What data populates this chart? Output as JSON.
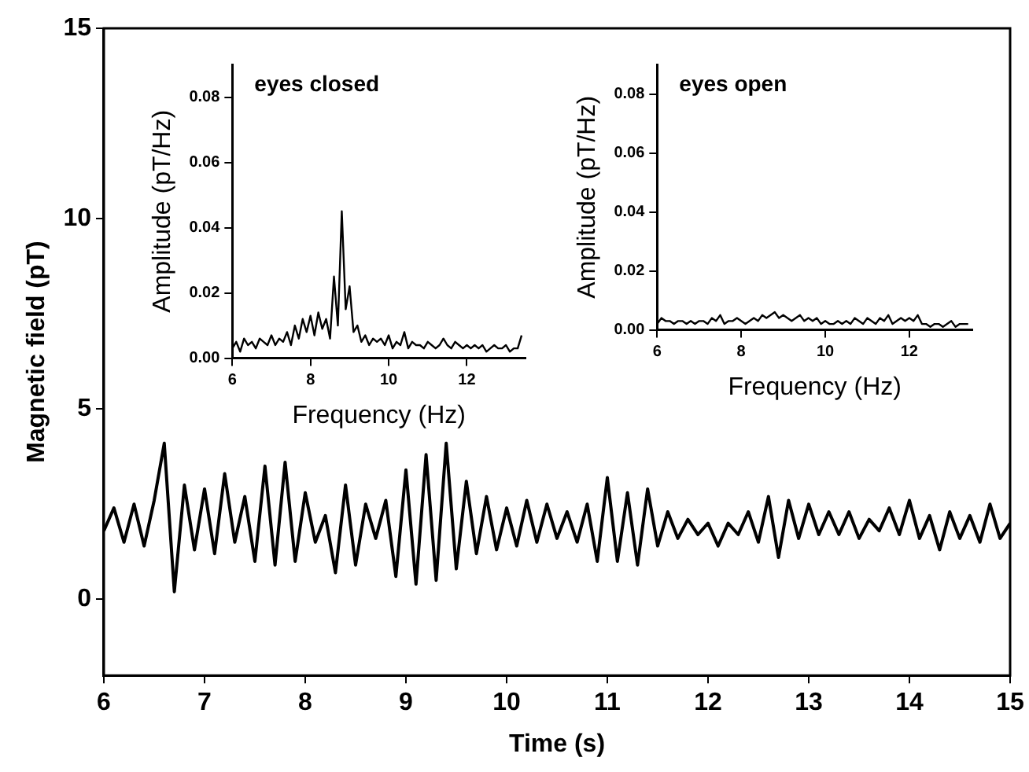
{
  "chart_data": [
    {
      "type": "line",
      "xlabel": "Time (s)",
      "ylabel": "Magnetic field (pT)",
      "xlim": [
        6,
        15
      ],
      "ylim": [
        -2,
        15
      ],
      "xticks": [
        6,
        7,
        8,
        9,
        10,
        11,
        12,
        13,
        14,
        15
      ],
      "yticks": [
        0,
        5,
        10,
        15
      ],
      "series": [
        {
          "color": "#000000",
          "x": [
            6.0,
            6.1,
            6.2,
            6.3,
            6.4,
            6.5,
            6.6,
            6.7,
            6.8,
            6.9,
            7.0,
            7.1,
            7.2,
            7.3,
            7.4,
            7.5,
            7.6,
            7.7,
            7.8,
            7.9,
            8.0,
            8.1,
            8.2,
            8.3,
            8.4,
            8.5,
            8.6,
            8.7,
            8.8,
            8.9,
            9.0,
            9.1,
            9.2,
            9.3,
            9.4,
            9.5,
            9.6,
            9.7,
            9.8,
            9.9,
            10.0,
            10.1,
            10.2,
            10.3,
            10.4,
            10.5,
            10.6,
            10.7,
            10.8,
            10.9,
            11.0,
            11.1,
            11.2,
            11.3,
            11.4,
            11.5,
            11.6,
            11.7,
            11.8,
            11.9,
            12.0,
            12.1,
            12.2,
            12.3,
            12.4,
            12.5,
            12.6,
            12.7,
            12.8,
            12.9,
            13.0,
            13.1,
            13.2,
            13.3,
            13.4,
            13.5,
            13.6,
            13.7,
            13.8,
            13.9,
            14.0,
            14.1,
            14.2,
            14.3,
            14.4,
            14.5,
            14.6,
            14.7,
            14.8,
            14.9,
            15.0
          ],
          "values": [
            1.8,
            2.4,
            1.5,
            2.5,
            1.4,
            2.6,
            4.1,
            0.2,
            3.0,
            1.3,
            2.9,
            1.2,
            3.3,
            1.5,
            2.7,
            1.0,
            3.5,
            0.9,
            3.6,
            1.0,
            2.8,
            1.5,
            2.2,
            0.7,
            3.0,
            0.9,
            2.5,
            1.6,
            2.6,
            0.6,
            3.4,
            0.4,
            3.8,
            0.5,
            4.1,
            0.8,
            3.1,
            1.2,
            2.7,
            1.3,
            2.4,
            1.4,
            2.6,
            1.5,
            2.5,
            1.6,
            2.3,
            1.5,
            2.5,
            1.0,
            3.2,
            1.0,
            2.8,
            0.9,
            2.9,
            1.4,
            2.3,
            1.6,
            2.1,
            1.7,
            2.0,
            1.4,
            2.0,
            1.7,
            2.3,
            1.5,
            2.7,
            1.1,
            2.6,
            1.6,
            2.5,
            1.7,
            2.3,
            1.7,
            2.3,
            1.6,
            2.1,
            1.8,
            2.4,
            1.7,
            2.6,
            1.6,
            2.2,
            1.3,
            2.3,
            1.6,
            2.2,
            1.5,
            2.5,
            1.6,
            2.0
          ]
        }
      ]
    },
    {
      "type": "line",
      "xlabel": "Frequency (Hz)",
      "ylabel": "Amplitude (pT/Hz)",
      "annotations": [
        "eyes closed"
      ],
      "xlim": [
        6,
        13.5
      ],
      "ylim": [
        0,
        0.09
      ],
      "xticks": [
        6,
        8,
        10,
        12
      ],
      "yticks": [
        {
          "value": 0,
          "label": "0.00"
        },
        0.02,
        0.04,
        0.06,
        0.08
      ],
      "series": [
        {
          "color": "#000000",
          "x": [
            6.0,
            6.1,
            6.2,
            6.3,
            6.4,
            6.5,
            6.6,
            6.7,
            6.8,
            6.9,
            7.0,
            7.1,
            7.2,
            7.3,
            7.4,
            7.5,
            7.6,
            7.7,
            7.8,
            7.9,
            8.0,
            8.1,
            8.2,
            8.3,
            8.4,
            8.5,
            8.6,
            8.7,
            8.8,
            8.9,
            9.0,
            9.1,
            9.2,
            9.3,
            9.4,
            9.5,
            9.6,
            9.7,
            9.8,
            9.9,
            10.0,
            10.1,
            10.2,
            10.3,
            10.4,
            10.5,
            10.6,
            10.7,
            10.8,
            10.9,
            11.0,
            11.1,
            11.2,
            11.3,
            11.4,
            11.5,
            11.6,
            11.7,
            11.8,
            11.9,
            12.0,
            12.1,
            12.2,
            12.3,
            12.4,
            12.5,
            12.6,
            12.7,
            12.8,
            12.9,
            13.0,
            13.1,
            13.2,
            13.3,
            13.4
          ],
          "values": [
            0.003,
            0.005,
            0.002,
            0.006,
            0.004,
            0.005,
            0.003,
            0.006,
            0.005,
            0.004,
            0.007,
            0.004,
            0.006,
            0.005,
            0.008,
            0.004,
            0.01,
            0.006,
            0.012,
            0.008,
            0.013,
            0.007,
            0.014,
            0.009,
            0.012,
            0.006,
            0.025,
            0.01,
            0.045,
            0.015,
            0.022,
            0.008,
            0.01,
            0.005,
            0.007,
            0.004,
            0.006,
            0.005,
            0.006,
            0.004,
            0.007,
            0.003,
            0.005,
            0.004,
            0.008,
            0.003,
            0.005,
            0.004,
            0.004,
            0.003,
            0.005,
            0.004,
            0.003,
            0.004,
            0.006,
            0.004,
            0.003,
            0.005,
            0.004,
            0.003,
            0.004,
            0.003,
            0.004,
            0.003,
            0.004,
            0.002,
            0.003,
            0.004,
            0.003,
            0.003,
            0.004,
            0.002,
            0.003,
            0.003,
            0.007
          ]
        }
      ]
    },
    {
      "type": "line",
      "xlabel": "Frequency (Hz)",
      "ylabel": "Amplitude (pT/Hz)",
      "annotations": [
        "eyes open"
      ],
      "xlim": [
        6,
        13.5
      ],
      "ylim": [
        0,
        0.09
      ],
      "xticks": [
        6,
        8,
        10,
        12
      ],
      "yticks": [
        {
          "value": 0,
          "label": "0.00"
        },
        0.02,
        0.04,
        0.06,
        0.08
      ],
      "series": [
        {
          "color": "#000000",
          "x": [
            6.0,
            6.1,
            6.2,
            6.3,
            6.4,
            6.5,
            6.6,
            6.7,
            6.8,
            6.9,
            7.0,
            7.1,
            7.2,
            7.3,
            7.4,
            7.5,
            7.6,
            7.7,
            7.8,
            7.9,
            8.0,
            8.1,
            8.2,
            8.3,
            8.4,
            8.5,
            8.6,
            8.7,
            8.8,
            8.9,
            9.0,
            9.1,
            9.2,
            9.3,
            9.4,
            9.5,
            9.6,
            9.7,
            9.8,
            9.9,
            10.0,
            10.1,
            10.2,
            10.3,
            10.4,
            10.5,
            10.6,
            10.7,
            10.8,
            10.9,
            11.0,
            11.1,
            11.2,
            11.3,
            11.4,
            11.5,
            11.6,
            11.7,
            11.8,
            11.9,
            12.0,
            12.1,
            12.2,
            12.3,
            12.4,
            12.5,
            12.6,
            12.7,
            12.8,
            12.9,
            13.0,
            13.1,
            13.2,
            13.3,
            13.4
          ],
          "values": [
            0.002,
            0.004,
            0.003,
            0.003,
            0.002,
            0.003,
            0.003,
            0.002,
            0.003,
            0.002,
            0.003,
            0.003,
            0.002,
            0.004,
            0.003,
            0.005,
            0.002,
            0.003,
            0.003,
            0.004,
            0.003,
            0.002,
            0.003,
            0.004,
            0.003,
            0.005,
            0.004,
            0.005,
            0.006,
            0.004,
            0.005,
            0.004,
            0.003,
            0.004,
            0.005,
            0.003,
            0.004,
            0.003,
            0.004,
            0.002,
            0.003,
            0.002,
            0.002,
            0.003,
            0.002,
            0.003,
            0.002,
            0.004,
            0.003,
            0.002,
            0.004,
            0.003,
            0.002,
            0.004,
            0.003,
            0.005,
            0.002,
            0.003,
            0.004,
            0.003,
            0.004,
            0.003,
            0.005,
            0.002,
            0.002,
            0.001,
            0.002,
            0.002,
            0.001,
            0.002,
            0.003,
            0.001,
            0.002,
            0.002,
            0.002
          ]
        }
      ]
    }
  ]
}
